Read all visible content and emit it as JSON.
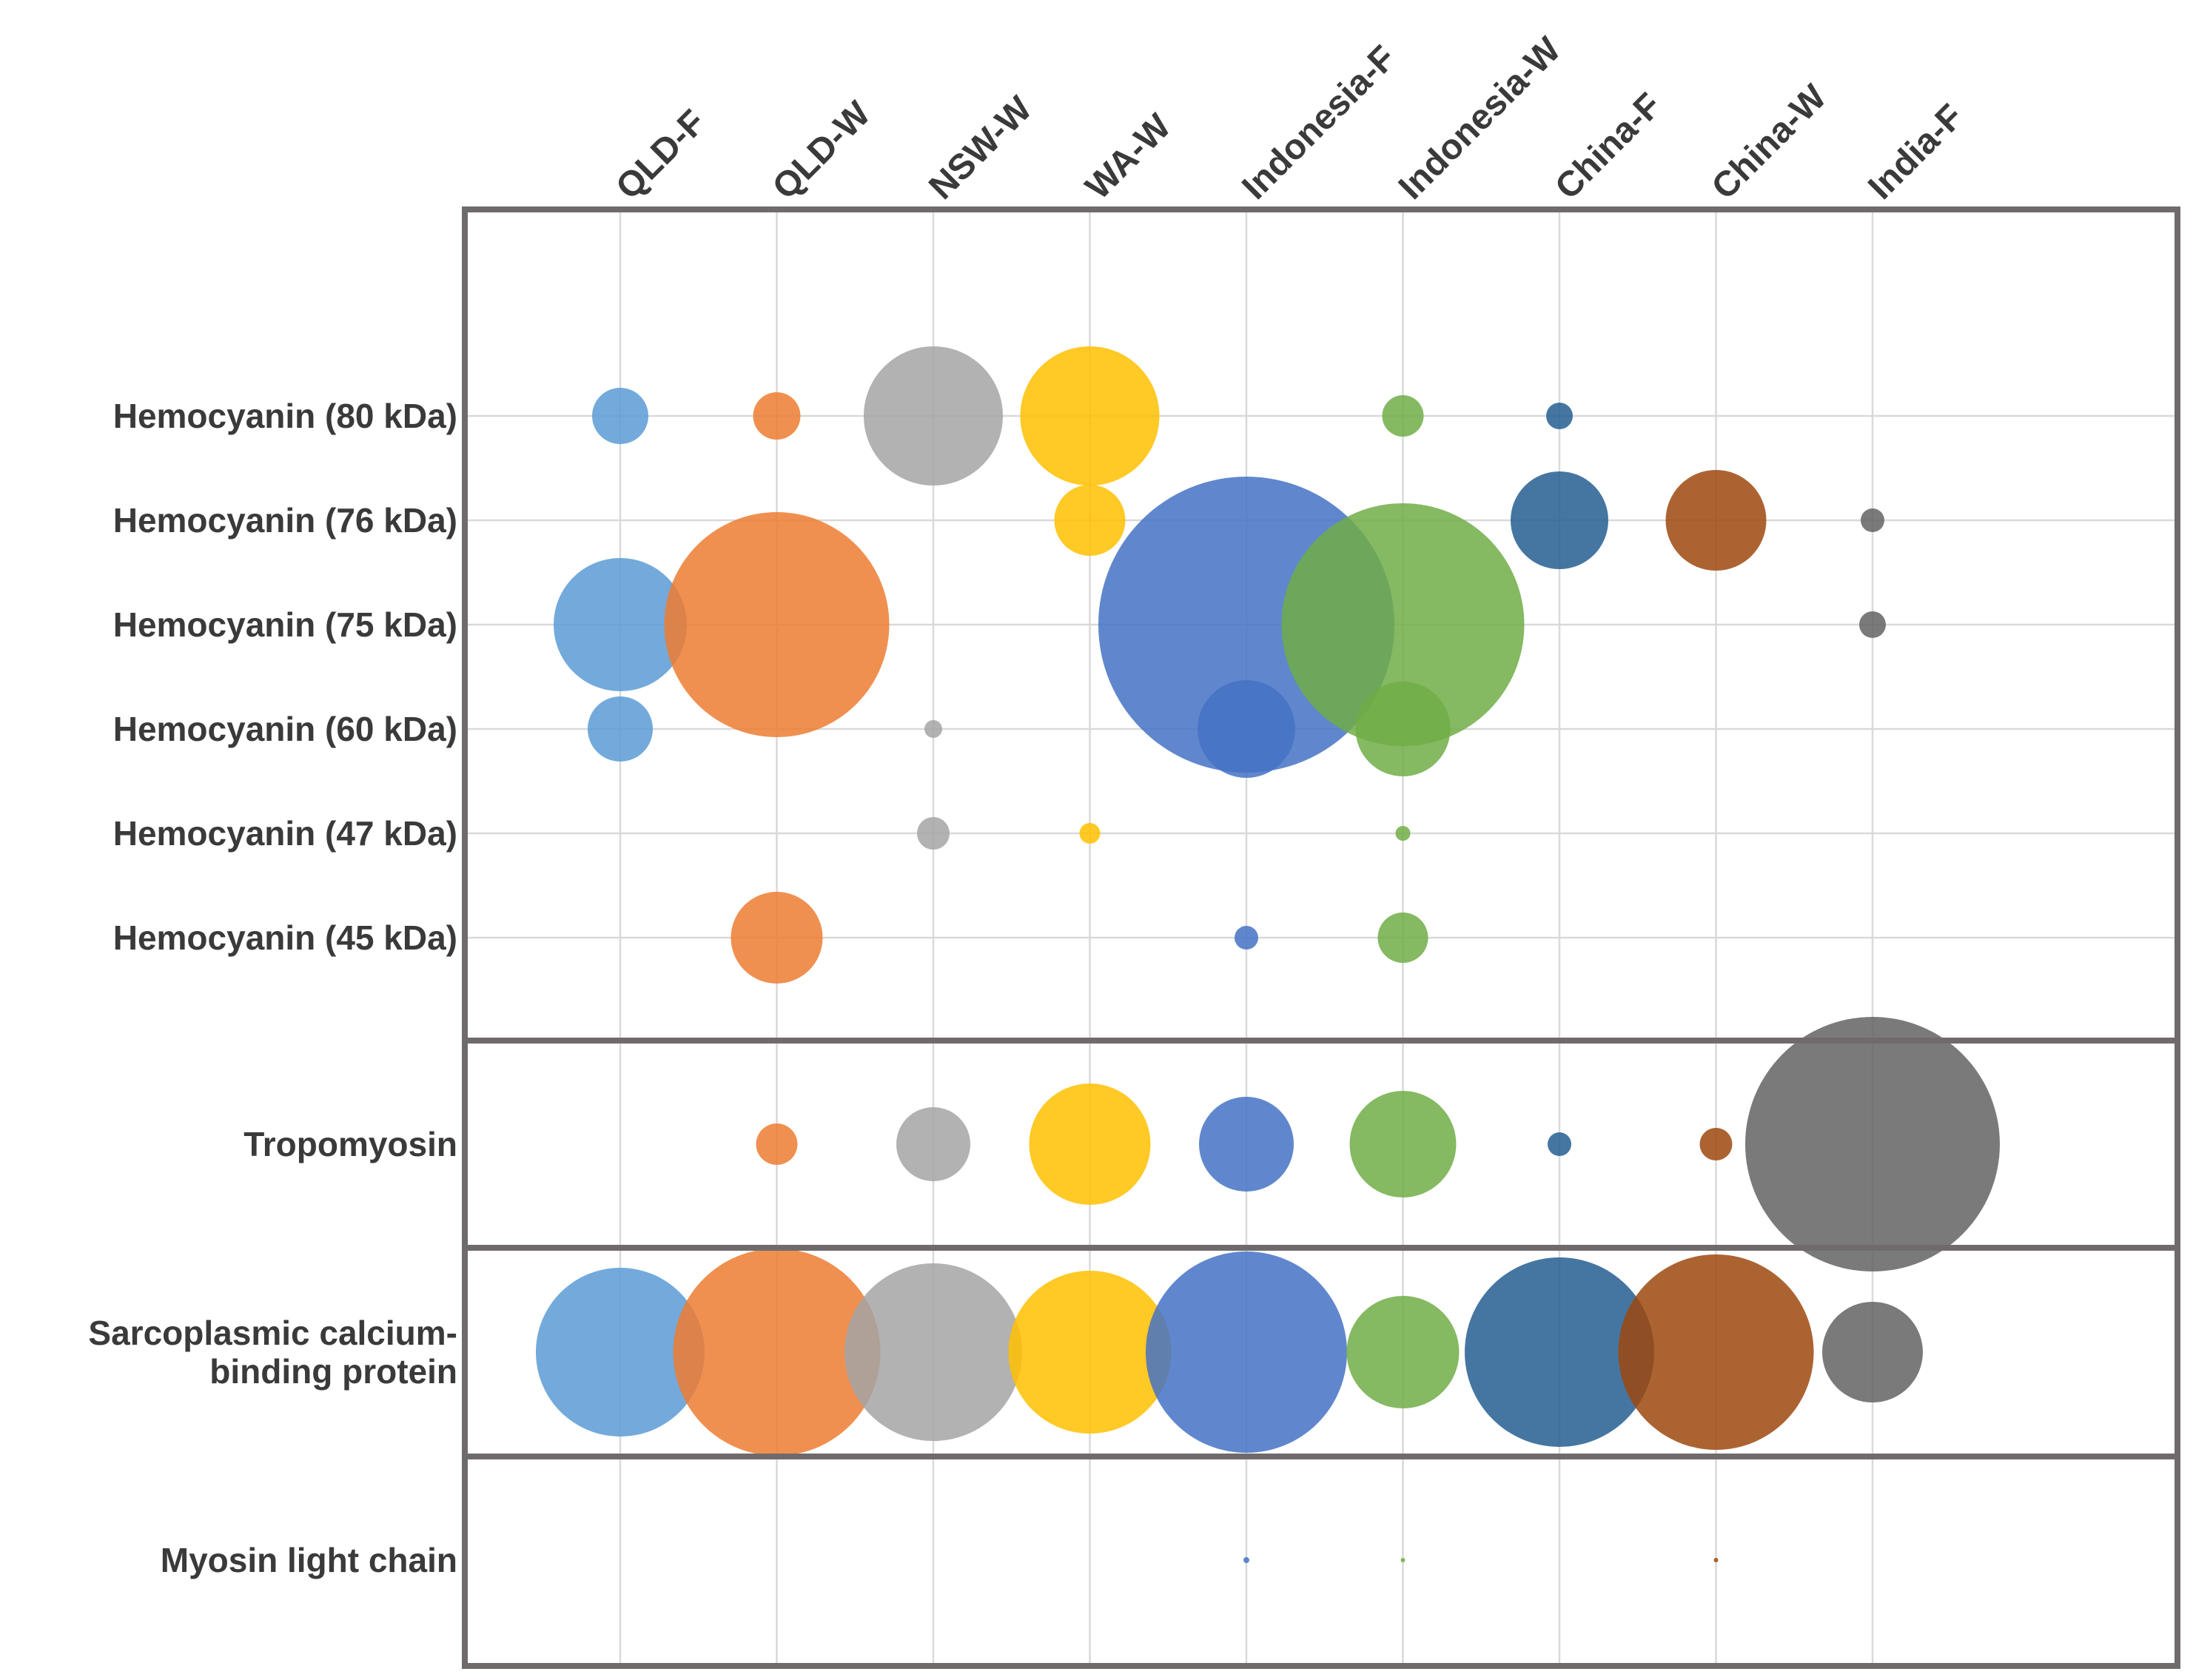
{
  "chart_data": {
    "type": "bubble",
    "title": "",
    "xlabel": "",
    "ylabel": "",
    "grid": true,
    "legend": "none",
    "categories": [
      "QLD-F",
      "QLD-W",
      "NSW-W",
      "WA-W",
      "Indonesia-F",
      "Indonesia-W",
      "China-F",
      "China-W",
      "India-F"
    ],
    "colors": [
      "#5b9bd5",
      "#ed7d31",
      "#a5a5a5",
      "#ffc000",
      "#4472c4",
      "#70ad47",
      "#255e91",
      "#9e480e",
      "#636363"
    ],
    "groups": [
      {
        "name": "Hemocyanin",
        "rows": [
          {
            "label": "Hemocyanin (80 kDa)",
            "values": [
              1.9,
              1.6,
              4.7,
              4.7,
              null,
              1.4,
              0.9,
              null,
              null
            ]
          },
          {
            "label": "Hemocyanin (76 kDa)",
            "values": [
              null,
              null,
              null,
              2.4,
              null,
              null,
              3.3,
              3.4,
              0.8
            ]
          },
          {
            "label": "Hemocyanin (75 kDa)",
            "values": [
              4.5,
              7.6,
              null,
              null,
              10,
              8.2,
              null,
              null,
              0.9
            ]
          },
          {
            "label": "Hemocyanin (60 kDa)",
            "values": [
              2.2,
              null,
              0.6,
              null,
              3.3,
              3.2,
              null,
              null,
              null
            ]
          },
          {
            "label": "Hemocyanin (47 kDa)",
            "values": [
              null,
              null,
              1.1,
              0.7,
              null,
              0.5,
              null,
              null,
              null
            ]
          },
          {
            "label": "Hemocyanin (45 kDa)",
            "values": [
              null,
              3.1,
              null,
              null,
              0.8,
              1.7,
              null,
              null,
              null
            ]
          }
        ]
      },
      {
        "name": "Tropomyosin",
        "rows": [
          {
            "label": "Tropomyosin",
            "values": [
              null,
              1.4,
              2.5,
              4.1,
              3.2,
              3.6,
              0.8,
              1.1,
              8.6
            ]
          }
        ]
      },
      {
        "name": "Sarcoplasmic calcium-binding protein",
        "rows": [
          {
            "label": "Sarcoplasmic calcium-binding protein",
            "lines": [
              "Sarcoplasmic calcium-",
              "binding protein"
            ],
            "values": [
              5.7,
              7.0,
              6.0,
              5.5,
              6.8,
              3.8,
              6.4,
              6.6,
              3.4
            ]
          }
        ]
      },
      {
        "name": "Myosin light chain",
        "rows": [
          {
            "label": "Myosin light chain",
            "values": [
              null,
              null,
              null,
              null,
              0.2,
              0.03,
              null,
              0.15,
              null
            ]
          }
        ]
      }
    ]
  }
}
